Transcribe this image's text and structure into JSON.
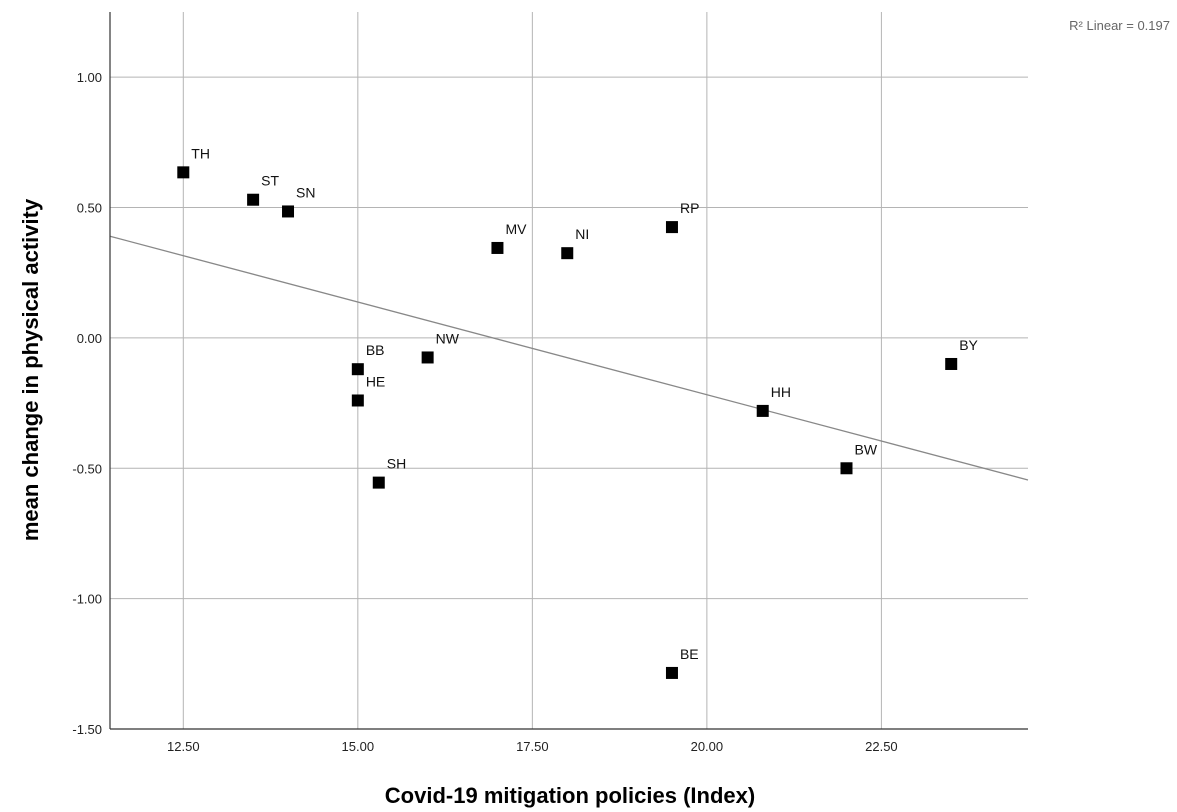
{
  "chart_data": {
    "type": "scatter",
    "title": "",
    "xlabel": "Covid-19 mitigation policies (Index)",
    "ylabel": "mean change in physical activity",
    "xlim": [
      11.45,
      24.6
    ],
    "ylim": [
      -1.5,
      1.25
    ],
    "x_ticks": [
      12.5,
      15.0,
      17.5,
      20.0,
      22.5
    ],
    "x_tick_labels": [
      "12.50",
      "15.00",
      "17.50",
      "20.00",
      "22.50"
    ],
    "y_ticks": [
      1.0,
      0.5,
      0.0,
      -0.5,
      -1.0,
      -1.5
    ],
    "y_tick_labels": [
      "1.00",
      "0.50",
      "0.00",
      "-0.50",
      "-1.00",
      "-1.50"
    ],
    "grid": true,
    "points": [
      {
        "label": "TH",
        "x": 12.5,
        "y": 0.635
      },
      {
        "label": "ST",
        "x": 13.5,
        "y": 0.53
      },
      {
        "label": "SN",
        "x": 14.0,
        "y": 0.485
      },
      {
        "label": "MV",
        "x": 17.0,
        "y": 0.345
      },
      {
        "label": "NI",
        "x": 18.0,
        "y": 0.325
      },
      {
        "label": "RP",
        "x": 19.5,
        "y": 0.425
      },
      {
        "label": "BB",
        "x": 15.0,
        "y": -0.12
      },
      {
        "label": "HE",
        "x": 15.0,
        "y": -0.24
      },
      {
        "label": "NW",
        "x": 16.0,
        "y": -0.075
      },
      {
        "label": "SH",
        "x": 15.3,
        "y": -0.555
      },
      {
        "label": "BY",
        "x": 23.5,
        "y": -0.1
      },
      {
        "label": "HH",
        "x": 20.8,
        "y": -0.28
      },
      {
        "label": "BW",
        "x": 22.0,
        "y": -0.5
      },
      {
        "label": "BE",
        "x": 19.5,
        "y": -1.285
      }
    ],
    "fit_line": {
      "type": "linear",
      "x": [
        11.45,
        24.6
      ],
      "y": [
        0.39,
        -0.545
      ]
    },
    "annotation": "R² Linear = 0.197",
    "colors": {
      "marker": "#000000",
      "grid": "#b4b4b4",
      "fit_line": "#888888",
      "axis": "#333333"
    }
  }
}
